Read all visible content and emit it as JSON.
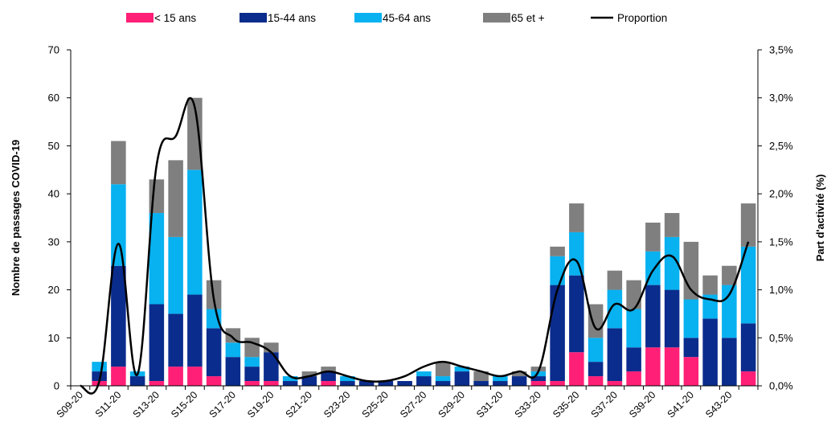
{
  "chart_data": {
    "type": "bar",
    "stacked": true,
    "categories": [
      "S09-20",
      "S10-20",
      "S11-20",
      "S12-20",
      "S13-20",
      "S14-20",
      "S15-20",
      "S16-20",
      "S17-20",
      "S18-20",
      "S19-20",
      "S20-20",
      "S21-20",
      "S22-20",
      "S23-20",
      "S24-20",
      "S25-20",
      "S26-20",
      "S27-20",
      "S28-20",
      "S29-20",
      "S30-20",
      "S31-20",
      "S32-20",
      "S33-20",
      "S34-20",
      "S35-20",
      "S36-20",
      "S37-20",
      "S38-20",
      "S39-20",
      "S40-20",
      "S41-20",
      "S42-20",
      "S43-20",
      "S44-20"
    ],
    "x_tick_labels": [
      "S09-20",
      "S11-20",
      "S13-20",
      "S15-20",
      "S17-20",
      "S19-20",
      "S21-20",
      "S23-20",
      "S25-20",
      "S27-20",
      "S29-20",
      "S31-20",
      "S33-20",
      "S35-20",
      "S37-20",
      "S39-20",
      "S41-20",
      "S43-20"
    ],
    "series": [
      {
        "name": "< 15 ans",
        "color": "#ff1f77",
        "values": [
          0,
          1,
          4,
          0,
          1,
          4,
          4,
          2,
          0,
          1,
          1,
          0,
          0,
          1,
          0,
          0,
          0,
          0,
          0,
          0,
          0,
          0,
          0,
          0,
          1,
          1,
          7,
          2,
          1,
          3,
          8,
          8,
          6,
          0,
          0,
          3
        ]
      },
      {
        "name": "15-44 ans",
        "color": "#0a2c8c",
        "values": [
          0,
          2,
          21,
          2,
          16,
          11,
          15,
          10,
          6,
          3,
          6,
          1,
          2,
          2,
          1,
          1,
          1,
          1,
          2,
          1,
          3,
          1,
          1,
          2,
          1,
          20,
          16,
          3,
          11,
          5,
          13,
          12,
          4,
          14,
          10,
          10
        ]
      },
      {
        "name": "45-64 ans",
        "color": "#08b1f0",
        "values": [
          0,
          2,
          17,
          1,
          19,
          16,
          26,
          4,
          3,
          2,
          0,
          1,
          0,
          0,
          1,
          0,
          0,
          0,
          1,
          1,
          1,
          0,
          1,
          0,
          1,
          6,
          9,
          5,
          8,
          8,
          7,
          11,
          8,
          5,
          11,
          16
        ]
      },
      {
        "name": "65 et +",
        "color": "#7f7f7f",
        "values": [
          0,
          0,
          9,
          0,
          7,
          16,
          15,
          6,
          3,
          4,
          2,
          0,
          1,
          1,
          0,
          0,
          0,
          0,
          0,
          3,
          0,
          2,
          0,
          1,
          1,
          2,
          6,
          7,
          4,
          6,
          6,
          5,
          12,
          4,
          4,
          9
        ]
      }
    ],
    "line_series": {
      "name": "Proportion",
      "color": "#000000",
      "axis": "right",
      "values": [
        0.0,
        0.05,
        1.48,
        0.12,
        2.3,
        2.6,
        2.9,
        0.9,
        0.5,
        0.45,
        0.35,
        0.1,
        0.1,
        0.15,
        0.1,
        0.05,
        0.05,
        0.1,
        0.2,
        0.25,
        0.2,
        0.15,
        0.1,
        0.15,
        0.15,
        1.0,
        1.3,
        0.6,
        0.85,
        0.8,
        1.2,
        1.35,
        1.0,
        0.9,
        0.95,
        1.5
      ]
    },
    "ylabel": "Nombre de passages COVID-19",
    "y2label": "Part d'activité (%)",
    "ylim": [
      0,
      70
    ],
    "yticks": [
      "0",
      "10",
      "20",
      "30",
      "40",
      "50",
      "60",
      "70"
    ],
    "y2lim": [
      0,
      3.5
    ],
    "y2ticks": [
      "0,0%",
      "0,5%",
      "1,0%",
      "1,5%",
      "2,0%",
      "2,5%",
      "3,0%",
      "3,5%"
    ],
    "legend": {
      "position": "top",
      "entries": [
        "< 15 ans",
        "15-44 ans",
        "45-64 ans",
        "65 et +",
        "Proportion"
      ]
    },
    "grid": false
  }
}
